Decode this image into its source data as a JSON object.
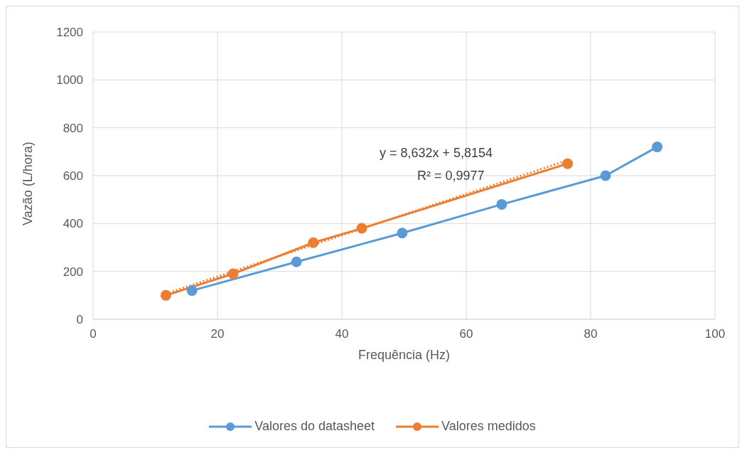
{
  "chart_data": {
    "type": "line",
    "xlabel": "Frequência (Hz)",
    "ylabel": "Vazão (L/hora)",
    "xlim": [
      0,
      100
    ],
    "xticks": [
      0,
      20,
      40,
      60,
      80,
      100
    ],
    "ylim": [
      0,
      1200
    ],
    "yticks": [
      0,
      200,
      400,
      600,
      800,
      1000,
      1200
    ],
    "grid": true,
    "legend": "bottom",
    "marker": "circle",
    "annotations": [
      "y = 8,632x + 5,8154",
      "R² = 0,9977"
    ],
    "series": [
      {
        "name": "Valores do datasheet",
        "color": "#5b9bd5",
        "x": [
          15.9,
          32.7,
          49.7,
          65.7,
          82.4,
          90.7
        ],
        "values": [
          120,
          240,
          360,
          480,
          600,
          720
        ]
      },
      {
        "name": "Valores medidos",
        "color": "#ed7d31",
        "x": [
          11.7,
          22.5,
          35.4,
          43.2,
          76.3
        ],
        "values": [
          100,
          190,
          320,
          380,
          650
        ]
      },
      {
        "type": "line",
        "color": "#ed7d31",
        "line_style": "dotted",
        "marker": "none",
        "x": [
          11.7,
          76.3
        ],
        "values": [
          107,
          664
        ]
      }
    ]
  }
}
